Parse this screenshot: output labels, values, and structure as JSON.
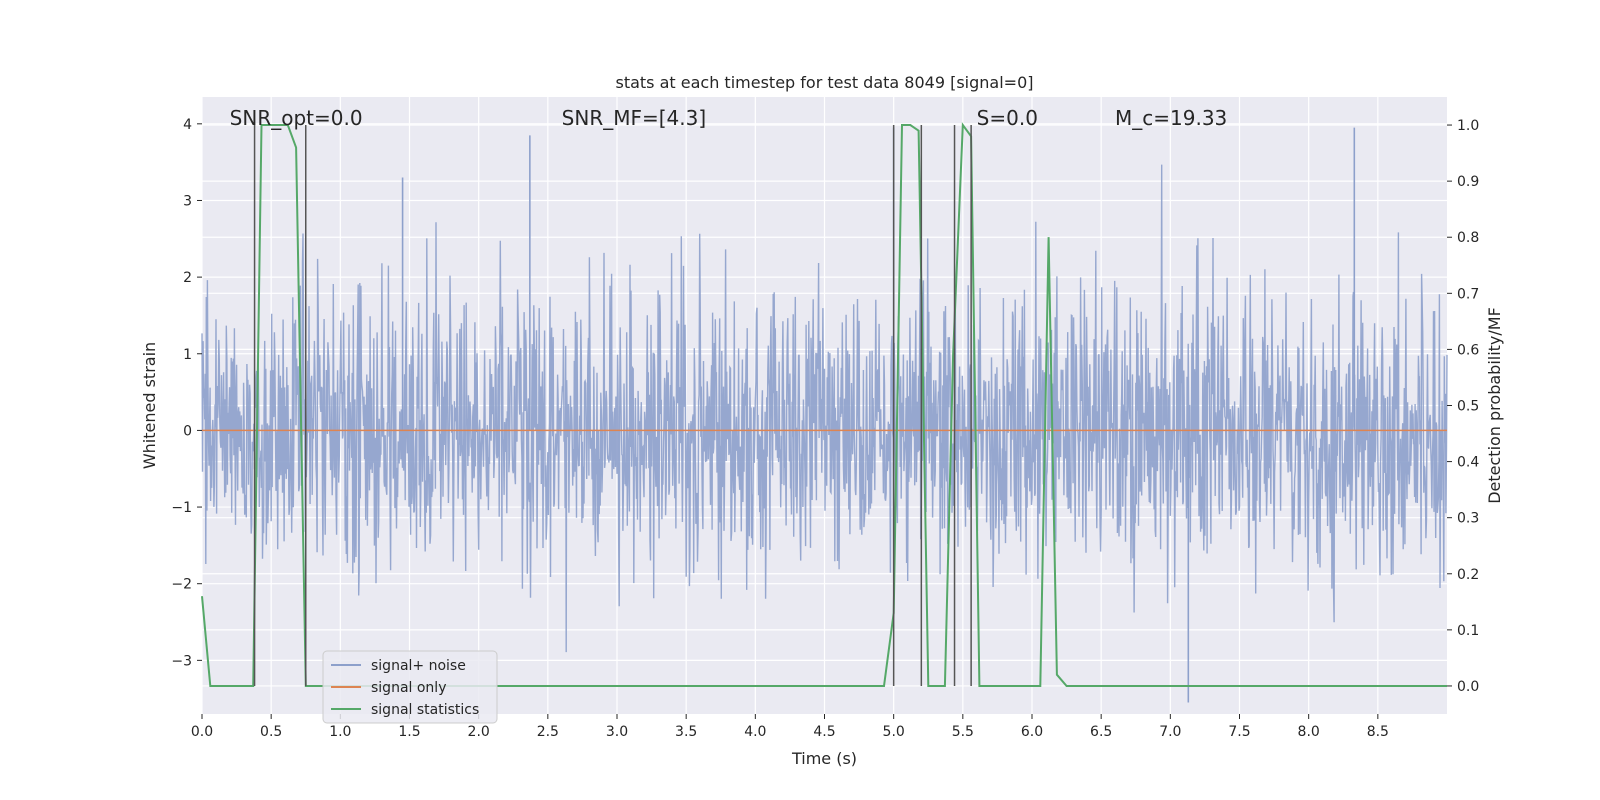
{
  "chart_data": {
    "type": "line",
    "title": "stats at each timestep for test data 8049 [signal=0]",
    "xlabel": "Time (s)",
    "ylabel": "Whitened strain",
    "y2label": "Detection probability/MF",
    "xlim": [
      0.0,
      9.0
    ],
    "ylim": [
      -3.7,
      4.35
    ],
    "y2lim": [
      -0.05,
      1.05
    ],
    "xticks": [
      0.0,
      0.5,
      1.0,
      1.5,
      2.0,
      2.5,
      3.0,
      3.5,
      4.0,
      4.5,
      5.0,
      5.5,
      6.0,
      6.5,
      7.0,
      7.5,
      8.0,
      8.5
    ],
    "xtick_labels": [
      "0.0",
      "0.5",
      "1.0",
      "1.5",
      "2.0",
      "2.5",
      "3.0",
      "3.5",
      "4.0",
      "4.5",
      "5.0",
      "5.5",
      "6.0",
      "6.5",
      "7.0",
      "7.5",
      "8.0",
      "8.5"
    ],
    "yticks": [
      -3,
      -2,
      -1,
      0,
      1,
      2,
      3,
      4
    ],
    "ytick_labels": [
      "−3",
      "−2",
      "−1",
      "0",
      "1",
      "2",
      "3",
      "4"
    ],
    "y2ticks": [
      0.0,
      0.1,
      0.2,
      0.3,
      0.4,
      0.5,
      0.6,
      0.7,
      0.8,
      0.9,
      1.0
    ],
    "y2tick_labels": [
      "0.0",
      "0.1",
      "0.2",
      "0.3",
      "0.4",
      "0.5",
      "0.6",
      "0.7",
      "0.8",
      "0.9",
      "1.0"
    ],
    "grid": true,
    "legend_position": "lower-left",
    "annotations": [
      {
        "text": "SNR_opt=0.0",
        "x": 0.2
      },
      {
        "text": "SNR_MF=[4.3]",
        "x": 2.6
      },
      {
        "text": "S=0.0",
        "x": 5.6
      },
      {
        "text": "M_c=19.33",
        "x": 6.6
      }
    ],
    "series": [
      {
        "name": "signal+ noise",
        "color": "#8da0cb",
        "noise": true,
        "sample_rate_hz": 256,
        "amplitude_std": 0.9,
        "peak_marks": [
          {
            "x": 2.37,
            "y": 3.85
          },
          {
            "x": 5.0,
            "y": 3.95
          },
          {
            "x": 8.33,
            "y": 3.95
          },
          {
            "x": 7.13,
            "y": -3.55
          },
          {
            "x": 1.45,
            "y": 3.3
          }
        ]
      },
      {
        "name": "signal only",
        "color": "#dd8452",
        "x": [
          0.0,
          9.0
        ],
        "y": [
          0.0,
          0.0
        ]
      },
      {
        "name": "signal statistics",
        "color": "#55a868",
        "axis": "right",
        "x": [
          0.0,
          0.06,
          0.12,
          0.25,
          0.37,
          0.43,
          0.5,
          0.62,
          0.68,
          0.75,
          0.81,
          0.87,
          4.37,
          4.93,
          5.0,
          5.06,
          5.12,
          5.18,
          5.25,
          5.31,
          5.37,
          5.43,
          5.5,
          5.56,
          5.62,
          5.68,
          6.06,
          6.12,
          6.18,
          6.25,
          6.31,
          9.0
        ],
        "y": [
          0.16,
          0.0,
          0.0,
          0.0,
          0.0,
          1.0,
          1.0,
          1.0,
          0.96,
          0.0,
          0.0,
          0.0,
          0.0,
          0.0,
          0.13,
          1.0,
          1.0,
          0.99,
          0.0,
          0.0,
          0.0,
          0.59,
          1.0,
          0.98,
          0.0,
          0.0,
          0.0,
          0.8,
          0.02,
          0.0,
          0.0,
          0.0
        ]
      }
    ],
    "vlines": [
      0.38,
      0.75,
      5.0,
      5.2,
      5.44,
      5.56
    ]
  }
}
